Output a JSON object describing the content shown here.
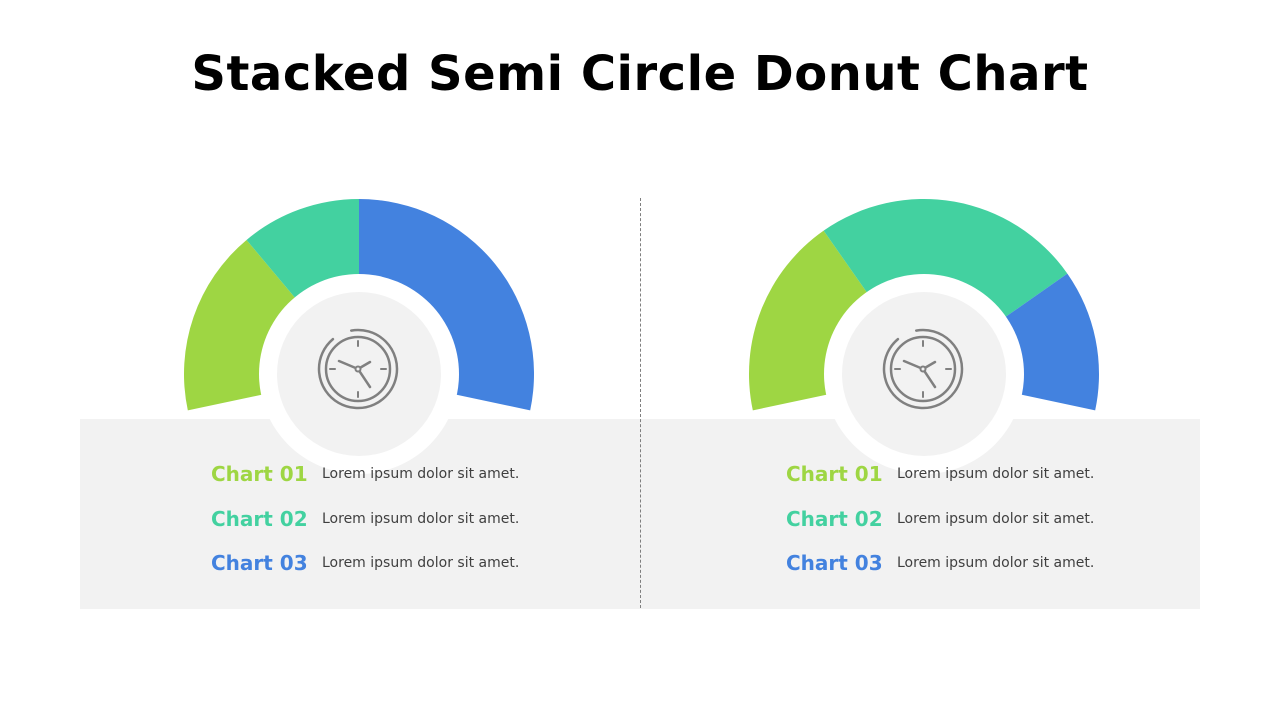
{
  "title": "Stacked Semi Circle Donut Chart",
  "colors": {
    "chart01": "#9ed643",
    "chart02": "#43d1a0",
    "chart03": "#4382df",
    "center_disc": "#f2f2f2",
    "icon": "#808080"
  },
  "chart_data": [
    {
      "type": "pie",
      "variant": "semi-donut",
      "segments": [
        {
          "name": "Chart 01",
          "start_deg": 0,
          "end_deg": 50
        },
        {
          "name": "Chart 02",
          "start_deg": 50,
          "end_deg": 90
        },
        {
          "name": "Chart 03",
          "start_deg": 90,
          "end_deg": 180
        }
      ],
      "legend": [
        {
          "label": "Chart 01",
          "text": "Lorem ipsum dolor sit amet."
        },
        {
          "label": "Chart 02",
          "text": "Lorem ipsum dolor sit amet."
        },
        {
          "label": "Chart 03",
          "text": "Lorem ipsum dolor sit amet."
        }
      ],
      "center_icon": "clock-icon"
    },
    {
      "type": "pie",
      "variant": "semi-donut",
      "segments": [
        {
          "name": "Chart 01",
          "start_deg": 0,
          "end_deg": 55
        },
        {
          "name": "Chart 02",
          "start_deg": 55,
          "end_deg": 145
        },
        {
          "name": "Chart 03",
          "start_deg": 145,
          "end_deg": 180
        }
      ],
      "legend": [
        {
          "label": "Chart 01",
          "text": "Lorem ipsum dolor sit amet."
        },
        {
          "label": "Chart 02",
          "text": "Lorem ipsum dolor sit amet."
        },
        {
          "label": "Chart 03",
          "text": "Lorem ipsum dolor sit amet."
        }
      ],
      "center_icon": "clock-icon"
    }
  ]
}
